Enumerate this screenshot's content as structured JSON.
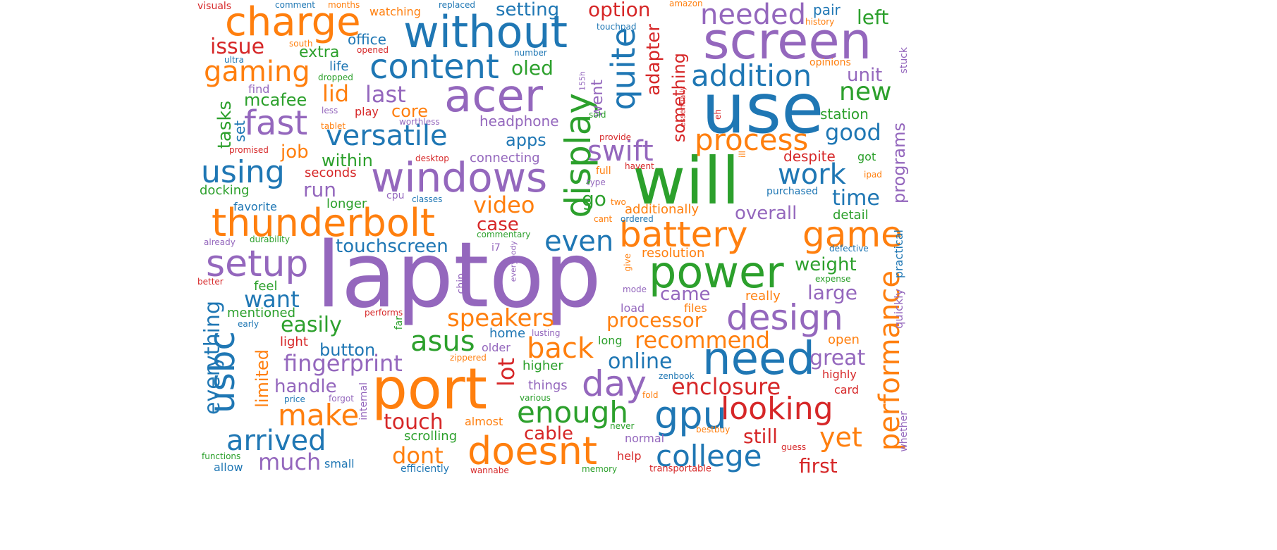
{
  "palette": {
    "blue": "#1f77b4",
    "orange": "#ff7f0e",
    "green": "#2ca02c",
    "red": "#d62728",
    "purple": "#9467bd"
  },
  "words": [
    {
      "text": "laptop",
      "color": "purple"
    },
    {
      "text": "use",
      "color": "blue"
    },
    {
      "text": "will",
      "color": "green"
    },
    {
      "text": "screen",
      "color": "purple"
    },
    {
      "text": "without",
      "color": "blue"
    },
    {
      "text": "port",
      "color": "orange"
    },
    {
      "text": "acer",
      "color": "purple"
    },
    {
      "text": "need",
      "color": "blue"
    },
    {
      "text": "power",
      "color": "green"
    },
    {
      "text": "windows",
      "color": "purple"
    },
    {
      "text": "thunderbolt",
      "color": "orange"
    },
    {
      "text": "doesnt",
      "color": "orange"
    },
    {
      "text": "charge",
      "color": "orange"
    },
    {
      "text": "battery",
      "color": "orange"
    },
    {
      "text": "game",
      "color": "orange"
    },
    {
      "text": "content",
      "color": "blue"
    },
    {
      "text": "display",
      "color": "green"
    },
    {
      "text": "day",
      "color": "purple"
    },
    {
      "text": "usbc",
      "color": "blue"
    },
    {
      "text": "setup",
      "color": "purple"
    },
    {
      "text": "design",
      "color": "purple"
    },
    {
      "text": "gpu",
      "color": "blue"
    },
    {
      "text": "looking",
      "color": "red"
    },
    {
      "text": "addition",
      "color": "blue"
    },
    {
      "text": "process",
      "color": "orange"
    },
    {
      "text": "quite",
      "color": "blue"
    },
    {
      "text": "fast",
      "color": "purple"
    },
    {
      "text": "using",
      "color": "blue"
    },
    {
      "text": "versatile",
      "color": "blue"
    },
    {
      "text": "needed",
      "color": "purple"
    },
    {
      "text": "performance",
      "color": "orange"
    },
    {
      "text": "college",
      "color": "blue"
    },
    {
      "text": "enough",
      "color": "green"
    },
    {
      "text": "swift",
      "color": "purple"
    },
    {
      "text": "work",
      "color": "blue"
    },
    {
      "text": "make",
      "color": "orange"
    },
    {
      "text": "arrived",
      "color": "blue"
    },
    {
      "text": "even",
      "color": "blue"
    },
    {
      "text": "back",
      "color": "orange"
    },
    {
      "text": "gaming",
      "color": "orange"
    },
    {
      "text": "asus",
      "color": "green"
    },
    {
      "text": "yet",
      "color": "orange"
    },
    {
      "text": "everything",
      "color": "blue"
    },
    {
      "text": "fingerprint",
      "color": "purple"
    },
    {
      "text": "new",
      "color": "green"
    },
    {
      "text": "good",
      "color": "blue"
    },
    {
      "text": "video",
      "color": "orange"
    },
    {
      "text": "speakers",
      "color": "orange"
    },
    {
      "text": "lot",
      "color": "red"
    },
    {
      "text": "recommend",
      "color": "orange"
    },
    {
      "text": "enclosure",
      "color": "red"
    },
    {
      "text": "much",
      "color": "purple"
    },
    {
      "text": "dont",
      "color": "orange"
    },
    {
      "text": "touch",
      "color": "red"
    },
    {
      "text": "time",
      "color": "blue"
    },
    {
      "text": "still",
      "color": "red"
    },
    {
      "text": "first",
      "color": "red"
    },
    {
      "text": "want",
      "color": "blue"
    },
    {
      "text": "easily",
      "color": "green"
    },
    {
      "text": "online",
      "color": "blue"
    },
    {
      "text": "great",
      "color": "purple"
    },
    {
      "text": "issue",
      "color": "red"
    },
    {
      "text": "last",
      "color": "purple"
    },
    {
      "text": "lid",
      "color": "orange"
    },
    {
      "text": "run",
      "color": "purple"
    },
    {
      "text": "overall",
      "color": "purple"
    },
    {
      "text": "processor",
      "color": "orange"
    },
    {
      "text": "large",
      "color": "purple"
    },
    {
      "text": "tasks",
      "color": "green"
    },
    {
      "text": "option",
      "color": "red"
    },
    {
      "text": "left",
      "color": "green"
    },
    {
      "text": "adapter",
      "color": "red"
    },
    {
      "text": "something",
      "color": "red"
    },
    {
      "text": "programs",
      "color": "purple"
    },
    {
      "text": "handle",
      "color": "purple"
    },
    {
      "text": "came",
      "color": "purple"
    },
    {
      "text": "weight",
      "color": "green"
    },
    {
      "text": "setting",
      "color": "blue"
    },
    {
      "text": "oled",
      "color": "green"
    },
    {
      "text": "apps",
      "color": "blue"
    },
    {
      "text": "within",
      "color": "green"
    },
    {
      "text": "button",
      "color": "blue"
    },
    {
      "text": "touchscreen",
      "color": "blue"
    },
    {
      "text": "limited",
      "color": "orange"
    },
    {
      "text": "cable",
      "color": "red"
    },
    {
      "text": "unit",
      "color": "purple"
    },
    {
      "text": "core",
      "color": "orange"
    },
    {
      "text": "job",
      "color": "orange"
    },
    {
      "text": "mcafee",
      "color": "green"
    },
    {
      "text": "went",
      "color": "purple"
    },
    {
      "text": "go",
      "color": "green"
    },
    {
      "text": "case",
      "color": "red"
    },
    {
      "text": "extra",
      "color": "green"
    },
    {
      "text": "office",
      "color": "blue"
    },
    {
      "text": "headphone",
      "color": "purple"
    },
    {
      "text": "station",
      "color": "green"
    },
    {
      "text": "additionally",
      "color": "orange"
    },
    {
      "text": "resolution",
      "color": "orange"
    },
    {
      "text": "despite",
      "color": "red"
    },
    {
      "text": "set",
      "color": "blue"
    },
    {
      "text": "pair",
      "color": "blue"
    },
    {
      "text": "connecting",
      "color": "purple"
    },
    {
      "text": "detail",
      "color": "green"
    },
    {
      "text": "docking",
      "color": "green"
    },
    {
      "text": "seconds",
      "color": "red"
    },
    {
      "text": "longer",
      "color": "green"
    },
    {
      "text": "favorite",
      "color": "blue"
    },
    {
      "text": "feel",
      "color": "green"
    },
    {
      "text": "mentioned",
      "color": "green"
    },
    {
      "text": "files",
      "color": "orange"
    },
    {
      "text": "really",
      "color": "orange"
    },
    {
      "text": "load",
      "color": "purple"
    },
    {
      "text": "home",
      "color": "blue"
    },
    {
      "text": "light",
      "color": "red"
    },
    {
      "text": "long",
      "color": "green"
    },
    {
      "text": "higher",
      "color": "green"
    },
    {
      "text": "things",
      "color": "purple"
    },
    {
      "text": "older",
      "color": "purple"
    },
    {
      "text": "open",
      "color": "orange"
    },
    {
      "text": "highly",
      "color": "red"
    },
    {
      "text": "card",
      "color": "red"
    },
    {
      "text": "practical",
      "color": "blue"
    },
    {
      "text": "quickly",
      "color": "purple"
    },
    {
      "text": "stuck",
      "color": "purple"
    },
    {
      "text": "got",
      "color": "green"
    },
    {
      "text": "find",
      "color": "purple"
    },
    {
      "text": "life",
      "color": "blue"
    },
    {
      "text": "play",
      "color": "red"
    },
    {
      "text": "full",
      "color": "orange"
    },
    {
      "text": "almost",
      "color": "orange"
    },
    {
      "text": "scrolling",
      "color": "green"
    },
    {
      "text": "internal",
      "color": "purple"
    },
    {
      "text": "normal",
      "color": "purple"
    },
    {
      "text": "small",
      "color": "blue"
    },
    {
      "text": "help",
      "color": "red"
    },
    {
      "text": "allow",
      "color": "blue"
    },
    {
      "text": "efficiently",
      "color": "blue"
    },
    {
      "text": "purchased",
      "color": "blue"
    },
    {
      "text": "chip",
      "color": "purple"
    },
    {
      "text": "far",
      "color": "green"
    },
    {
      "text": "i7",
      "color": "purple"
    },
    {
      "text": "whether",
      "color": "purple"
    },
    {
      "text": "watching",
      "color": "orange"
    },
    {
      "text": "opinions",
      "color": "orange"
    },
    {
      "text": "history",
      "color": "orange"
    },
    {
      "text": "visuals",
      "color": "red"
    },
    {
      "text": "comment",
      "color": "blue"
    },
    {
      "text": "months",
      "color": "orange"
    },
    {
      "text": "replaced",
      "color": "blue"
    },
    {
      "text": "amazon",
      "color": "orange"
    },
    {
      "text": "touchpad",
      "color": "blue"
    },
    {
      "text": "south",
      "color": "orange"
    },
    {
      "text": "ultra",
      "color": "blue"
    },
    {
      "text": "opened",
      "color": "red"
    },
    {
      "text": "number",
      "color": "blue"
    },
    {
      "text": "dropped",
      "color": "green"
    },
    {
      "text": "less",
      "color": "purple"
    },
    {
      "text": "tablet",
      "color": "orange"
    },
    {
      "text": "worthless",
      "color": "purple"
    },
    {
      "text": "promised",
      "color": "red"
    },
    {
      "text": "desktop",
      "color": "red"
    },
    {
      "text": "sold",
      "color": "green"
    },
    {
      "text": "provide",
      "color": "red"
    },
    {
      "text": "essentially",
      "color": "red"
    },
    {
      "text": "eh",
      "color": "red"
    },
    {
      "text": "155h",
      "color": "purple"
    },
    {
      "text": "havent",
      "color": "red"
    },
    {
      "text": "ill",
      "color": "orange"
    },
    {
      "text": "ipad",
      "color": "orange"
    },
    {
      "text": "type",
      "color": "purple"
    },
    {
      "text": "cpu",
      "color": "purple"
    },
    {
      "text": "classes",
      "color": "blue"
    },
    {
      "text": "two",
      "color": "orange"
    },
    {
      "text": "cant",
      "color": "orange"
    },
    {
      "text": "ordered",
      "color": "blue"
    },
    {
      "text": "commentary",
      "color": "green"
    },
    {
      "text": "already",
      "color": "purple"
    },
    {
      "text": "durability",
      "color": "green"
    },
    {
      "text": "defective",
      "color": "blue"
    },
    {
      "text": "everybody",
      "color": "purple"
    },
    {
      "text": "give",
      "color": "orange"
    },
    {
      "text": "mode",
      "color": "purple"
    },
    {
      "text": "expense",
      "color": "green"
    },
    {
      "text": "better",
      "color": "red"
    },
    {
      "text": "early",
      "color": "blue"
    },
    {
      "text": "performs",
      "color": "red"
    },
    {
      "text": "lusting",
      "color": "purple"
    },
    {
      "text": "zippered",
      "color": "orange"
    },
    {
      "text": "zenbook",
      "color": "blue"
    },
    {
      "text": "fold",
      "color": "orange"
    },
    {
      "text": "price",
      "color": "blue"
    },
    {
      "text": "forgot",
      "color": "purple"
    },
    {
      "text": "various",
      "color": "green"
    },
    {
      "text": "never",
      "color": "green"
    },
    {
      "text": "bestbuy",
      "color": "orange"
    },
    {
      "text": "guess",
      "color": "red"
    },
    {
      "text": "functions",
      "color": "green"
    },
    {
      "text": "wannabe",
      "color": "red"
    },
    {
      "text": "memory",
      "color": "green"
    },
    {
      "text": "transportable",
      "color": "red"
    }
  ]
}
